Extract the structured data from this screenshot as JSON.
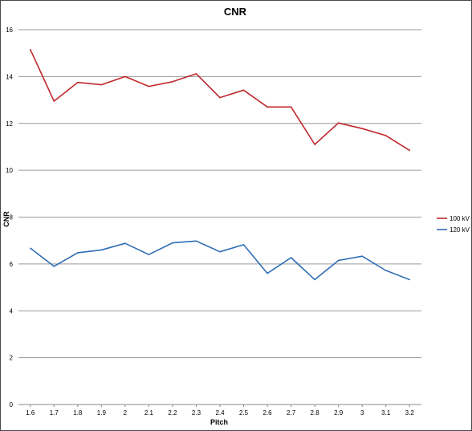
{
  "chart_data": {
    "type": "line",
    "title": "CNR",
    "xlabel": "Pitch",
    "ylabel": "CNR",
    "categories": [
      "1.6",
      "1.7",
      "1.8",
      "1.9",
      "2",
      "2.1",
      "2.2",
      "2.3",
      "2.4",
      "2.5",
      "2.6",
      "2.7",
      "2.8",
      "2.9",
      "3",
      "3.1",
      "3.2"
    ],
    "ylim": [
      0,
      16
    ],
    "yticks": [
      "0",
      "2",
      "4",
      "6",
      "8",
      "10",
      "12",
      "14",
      "16"
    ],
    "grid": "horizontal",
    "legend_position": "right",
    "series": [
      {
        "name": "100 kV",
        "color": "#c0282d",
        "values": [
          15.15,
          12.95,
          13.75,
          13.65,
          14.0,
          13.58,
          13.78,
          14.12,
          13.1,
          13.42,
          12.7,
          12.7,
          11.1,
          12.02,
          11.78,
          11.48,
          10.85
        ]
      },
      {
        "name": "120 kV",
        "color": "#2e6db5",
        "values": [
          6.67,
          5.9,
          6.48,
          6.6,
          6.88,
          6.4,
          6.9,
          6.98,
          6.52,
          6.82,
          5.6,
          6.27,
          5.33,
          6.15,
          6.33,
          5.72,
          5.33
        ]
      }
    ]
  }
}
